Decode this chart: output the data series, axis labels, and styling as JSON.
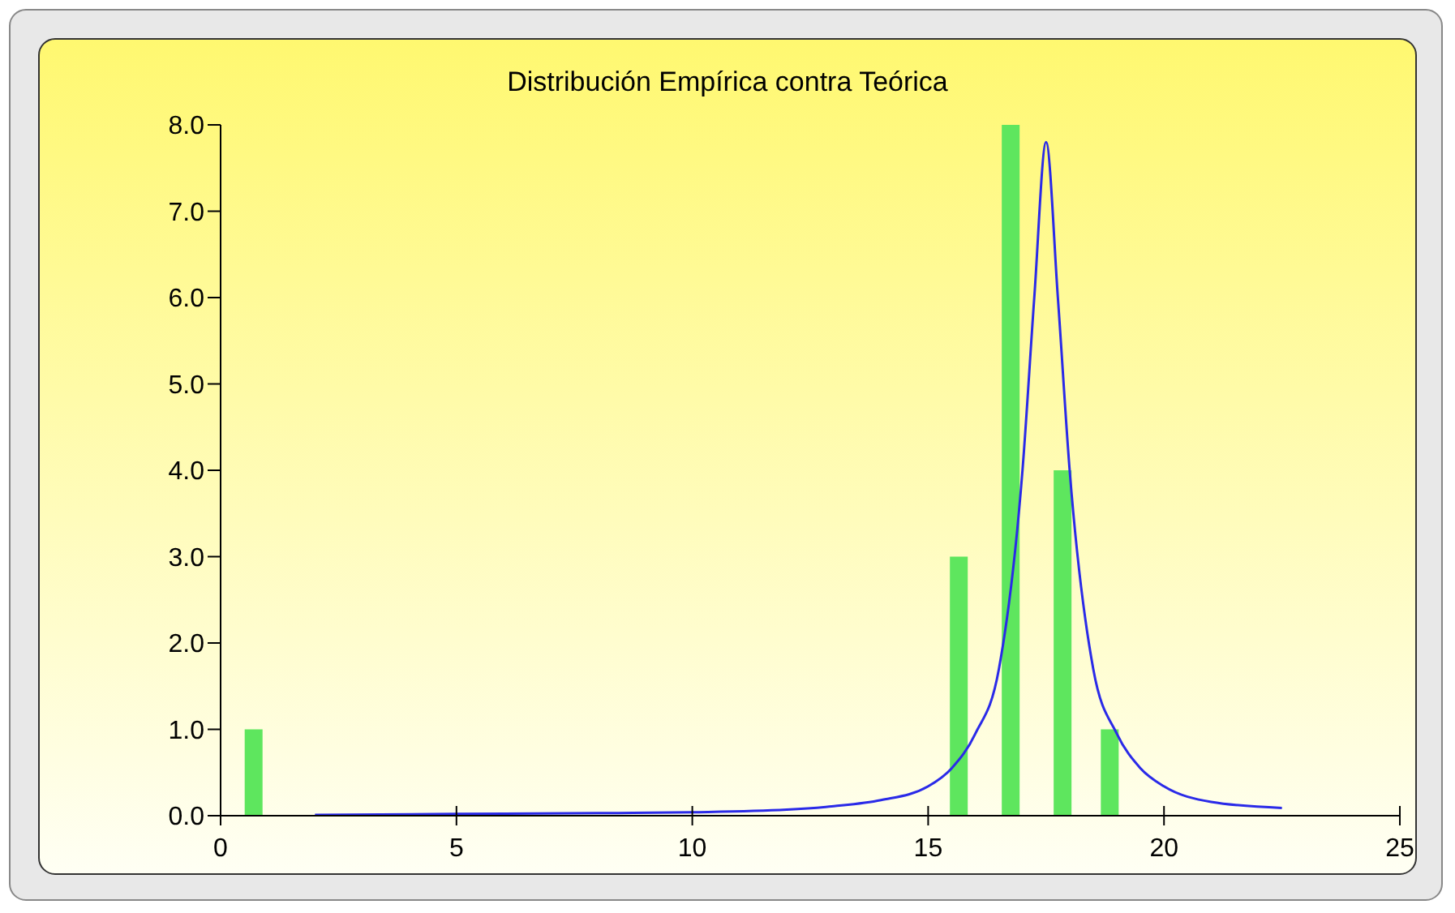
{
  "chart_data": {
    "type": "bar",
    "title": "Distribución Empírica contra Teórica",
    "xlim": [
      0,
      25
    ],
    "xticks": [
      0,
      5,
      10,
      15,
      20,
      25
    ],
    "ylim": [
      0,
      8
    ],
    "yticks": [
      {
        "value": 0,
        "label": "0.0"
      },
      {
        "value": 1,
        "label": "1.0"
      },
      {
        "value": 2,
        "label": "2.0"
      },
      {
        "value": 3,
        "label": "3.0"
      },
      {
        "value": 4,
        "label": "4.0"
      },
      {
        "value": 5,
        "label": "5.0"
      },
      {
        "value": 6,
        "label": "6.0"
      },
      {
        "value": 7,
        "label": "7.0"
      },
      {
        "value": 8,
        "label": "8.0"
      }
    ],
    "grid": false,
    "series": [
      {
        "color": "#5ee65e",
        "x": [
          0.7,
          15.65,
          16.75,
          17.85,
          18.85
        ],
        "values": [
          1,
          3,
          8,
          4,
          1
        ]
      },
      {
        "type": "line",
        "color": "#2a2ae8",
        "x": [
          2,
          5,
          8,
          10,
          12,
          13,
          14,
          15,
          15.5,
          16,
          16.5,
          17,
          17.25,
          17.5,
          17.75,
          18,
          18.5,
          19,
          19.5,
          20,
          21,
          22.5
        ],
        "values": [
          0.01,
          0.02,
          0.03,
          0.04,
          0.07,
          0.11,
          0.18,
          0.34,
          0.55,
          0.95,
          1.7,
          4.0,
          6.0,
          7.8,
          6.0,
          4.0,
          1.7,
          0.95,
          0.55,
          0.34,
          0.16,
          0.09
        ]
      }
    ]
  }
}
